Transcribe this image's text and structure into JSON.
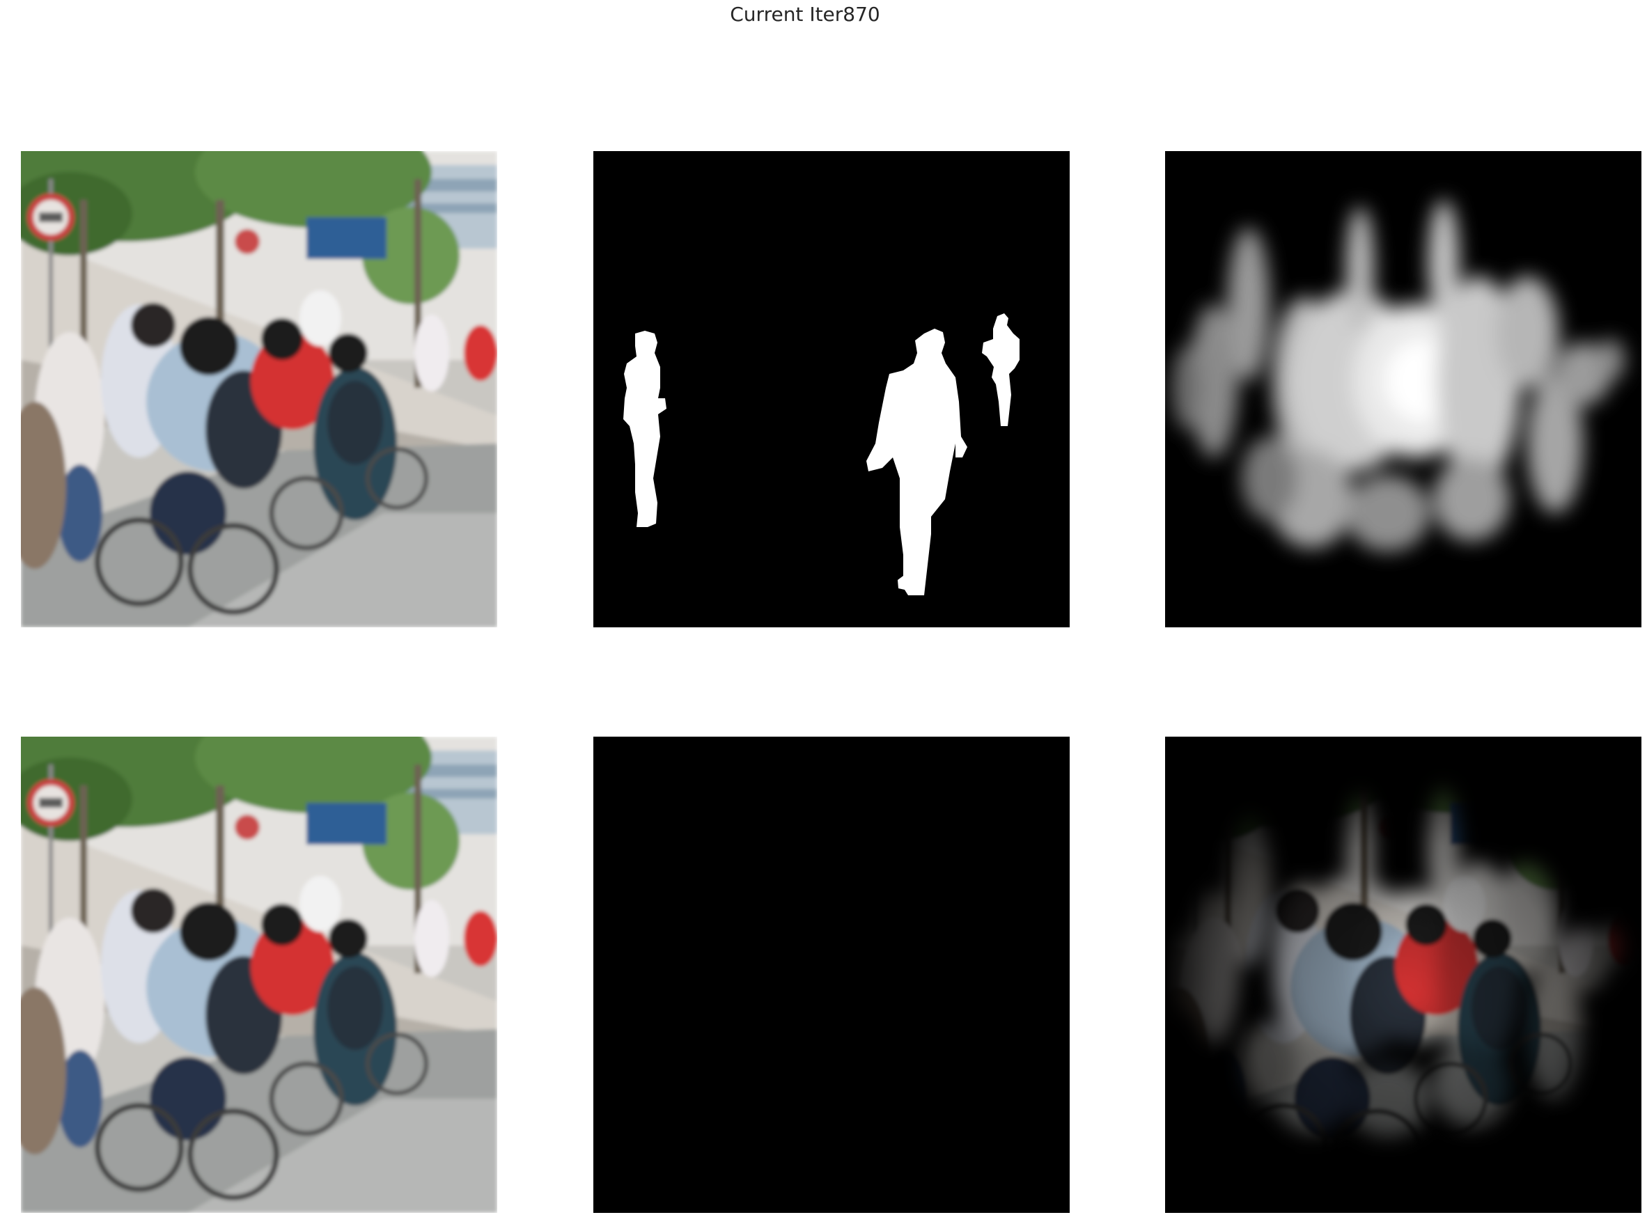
{
  "figure": {
    "title": "Current Iter870"
  },
  "panels": [
    {
      "row": 1,
      "col": 1,
      "content": "photo-crowd-street"
    },
    {
      "row": 1,
      "col": 2,
      "content": "ground-truth-mask"
    },
    {
      "row": 1,
      "col": 3,
      "content": "predicted-saliency-map"
    },
    {
      "row": 2,
      "col": 1,
      "content": "photo-crowd-street"
    },
    {
      "row": 2,
      "col": 2,
      "content": "masked-ground-truth-photo"
    },
    {
      "row": 2,
      "col": 3,
      "content": "masked-prediction-photo"
    }
  ],
  "colors": {
    "background": "#ffffff",
    "mask_background": "#000000",
    "mask_foreground": "#ffffff"
  }
}
